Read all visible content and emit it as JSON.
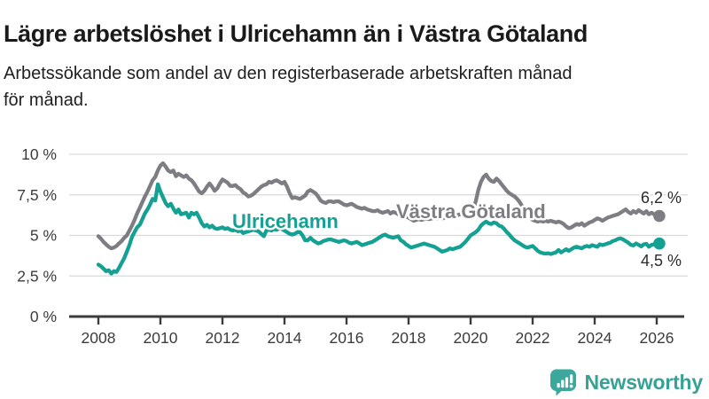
{
  "chart_data": {
    "type": "line",
    "title": "Lägre arbetslöshet i Ulricehamn än i Västra Götaland",
    "subtitle_lines": [
      "Arbetssökande som andel av den registerbaserade arbetskraften månad",
      "för månad."
    ],
    "unit": "%",
    "x_start": 2008.0,
    "x_step_years": 0.0833333,
    "xlim": [
      2007.6,
      2027.2
    ],
    "ylim": [
      0,
      10
    ],
    "grid": "horizontal",
    "y_ticks": [
      0,
      2.5,
      5,
      7.5,
      10
    ],
    "y_tick_labels": [
      "0 %",
      "2,5 %",
      "5 %",
      "7,5 %",
      "10 %"
    ],
    "x_ticks": [
      2008,
      2010,
      2012,
      2014,
      2016,
      2018,
      2020,
      2022,
      2024,
      2026
    ],
    "x_tick_labels": [
      "2008",
      "2010",
      "2012",
      "2014",
      "2016",
      "2018",
      "2020",
      "2022",
      "2024",
      "2026"
    ],
    "axis_color": "#3c3c3c",
    "gridline_color": "#d9d9d9",
    "end_label_color": "#2b2b2b",
    "series": [
      {
        "name": "Västra Götaland",
        "color": "#7d7d83",
        "end_label": "6,2 %",
        "end_value": 6.2,
        "values": [
          4.95,
          4.8,
          4.6,
          4.45,
          4.3,
          4.2,
          4.25,
          4.35,
          4.5,
          4.65,
          4.85,
          5.0,
          5.3,
          5.6,
          5.95,
          6.35,
          6.7,
          7.05,
          7.4,
          7.7,
          8.05,
          8.4,
          8.6,
          9.0,
          9.3,
          9.45,
          9.25,
          9.0,
          8.9,
          9.0,
          8.65,
          8.8,
          8.7,
          8.6,
          8.7,
          8.5,
          8.4,
          8.2,
          7.95,
          7.7,
          7.6,
          7.75,
          8.0,
          8.2,
          8.0,
          7.75,
          7.9,
          8.2,
          8.45,
          8.35,
          8.25,
          8.05,
          8.05,
          8.1,
          7.95,
          7.85,
          7.65,
          7.55,
          7.4,
          7.45,
          7.55,
          7.7,
          7.85,
          8.0,
          8.1,
          8.15,
          8.3,
          8.25,
          8.35,
          8.4,
          8.3,
          8.2,
          8.3,
          8.0,
          7.6,
          7.3,
          7.35,
          7.3,
          7.25,
          7.35,
          7.45,
          7.7,
          7.8,
          7.7,
          7.6,
          7.4,
          7.15,
          7.05,
          7.0,
          7.1,
          7.1,
          7.05,
          7.1,
          7.1,
          7.0,
          6.9,
          6.85,
          6.9,
          6.95,
          6.85,
          6.75,
          6.7,
          6.65,
          6.7,
          6.6,
          6.55,
          6.5,
          6.5,
          6.55,
          6.45,
          6.4,
          6.45,
          6.5,
          6.35,
          6.45,
          6.4,
          6.3,
          6.25,
          6.2,
          6.15,
          6.1,
          6.0,
          5.9,
          5.95,
          6.0,
          5.95,
          6.0,
          6.05,
          6.0,
          6.05,
          6.1,
          6.05,
          6.1,
          6.05,
          6.1,
          6.15,
          6.1,
          6.15,
          6.2,
          6.25,
          6.3,
          6.35,
          6.4,
          6.45,
          6.5,
          6.6,
          7.1,
          7.8,
          8.3,
          8.6,
          8.75,
          8.5,
          8.35,
          8.3,
          8.5,
          8.35,
          8.15,
          7.95,
          7.75,
          7.6,
          7.5,
          7.4,
          7.25,
          7.05,
          6.8,
          6.55,
          6.35,
          6.1,
          5.95,
          5.9,
          5.85,
          5.9,
          5.85,
          5.9,
          5.85,
          5.9,
          5.85,
          5.8,
          5.85,
          5.8,
          5.7,
          5.55,
          5.45,
          5.5,
          5.6,
          5.7,
          5.65,
          5.75,
          5.6,
          5.7,
          5.8,
          5.85,
          5.95,
          6.05,
          6.0,
          5.9,
          6.0,
          6.1,
          6.15,
          6.2,
          6.25,
          6.3,
          6.4,
          6.5,
          6.6,
          6.45,
          6.35,
          6.5,
          6.4,
          6.55,
          6.45,
          6.35,
          6.5,
          6.3,
          6.4,
          6.3,
          6.15,
          6.2
        ]
      },
      {
        "name": "Ulricehamn",
        "color": "#14a193",
        "end_label": "4,5 %",
        "end_value": 4.5,
        "values": [
          3.2,
          3.1,
          2.95,
          2.8,
          2.85,
          2.65,
          2.8,
          2.75,
          3.0,
          3.3,
          3.6,
          4.0,
          4.4,
          4.9,
          5.2,
          5.5,
          5.65,
          6.0,
          6.35,
          6.6,
          6.9,
          7.25,
          7.15,
          8.15,
          7.7,
          7.35,
          7.0,
          6.8,
          6.95,
          6.65,
          6.4,
          6.6,
          6.3,
          6.35,
          6.4,
          6.1,
          6.4,
          6.3,
          6.4,
          6.1,
          5.75,
          5.55,
          5.65,
          5.5,
          5.6,
          5.45,
          5.4,
          5.45,
          5.5,
          5.4,
          5.45,
          5.35,
          5.3,
          5.35,
          5.25,
          5.3,
          5.15,
          5.2,
          5.25,
          5.3,
          5.35,
          5.3,
          5.25,
          5.1,
          4.95,
          5.3,
          5.35,
          5.3,
          5.4,
          5.35,
          5.45,
          5.4,
          5.3,
          5.2,
          5.1,
          5.05,
          5.1,
          5.2,
          5.2,
          5.0,
          4.7,
          4.7,
          4.85,
          4.7,
          4.6,
          4.5,
          4.55,
          4.65,
          4.7,
          4.75,
          4.75,
          4.7,
          4.65,
          4.6,
          4.65,
          4.7,
          4.65,
          4.55,
          4.5,
          4.55,
          4.6,
          4.5,
          4.4,
          4.45,
          4.5,
          4.55,
          4.6,
          4.7,
          4.8,
          4.9,
          5.0,
          5.05,
          4.95,
          4.9,
          4.85,
          4.9,
          4.95,
          4.7,
          4.6,
          4.45,
          4.35,
          4.25,
          4.3,
          4.35,
          4.4,
          4.45,
          4.5,
          4.45,
          4.4,
          4.35,
          4.3,
          4.2,
          4.1,
          4.0,
          4.05,
          4.1,
          4.2,
          4.15,
          4.2,
          4.25,
          4.3,
          4.45,
          4.6,
          4.8,
          5.0,
          5.1,
          5.2,
          5.35,
          5.6,
          5.75,
          5.85,
          5.75,
          5.7,
          5.8,
          5.75,
          5.6,
          5.55,
          5.4,
          5.2,
          5.05,
          4.85,
          4.7,
          4.6,
          4.5,
          4.4,
          4.3,
          4.25,
          4.3,
          4.35,
          4.2,
          4.05,
          3.95,
          3.9,
          3.88,
          3.9,
          3.85,
          3.9,
          3.95,
          4.1,
          3.95,
          4.05,
          4.15,
          4.05,
          4.15,
          4.25,
          4.3,
          4.25,
          4.2,
          4.3,
          4.35,
          4.3,
          4.4,
          4.35,
          4.3,
          4.45,
          4.4,
          4.45,
          4.5,
          4.55,
          4.65,
          4.7,
          4.78,
          4.82,
          4.75,
          4.65,
          4.55,
          4.42,
          4.38,
          4.5,
          4.42,
          4.32,
          4.45,
          4.48,
          4.3,
          4.42,
          4.45,
          4.38,
          4.5
        ]
      }
    ]
  },
  "footer": {
    "logo_text": "Newsworthy",
    "logo_color": "#37a294",
    "logo_icon": "newsworthy-speech-bubble-bar-chart-icon"
  }
}
